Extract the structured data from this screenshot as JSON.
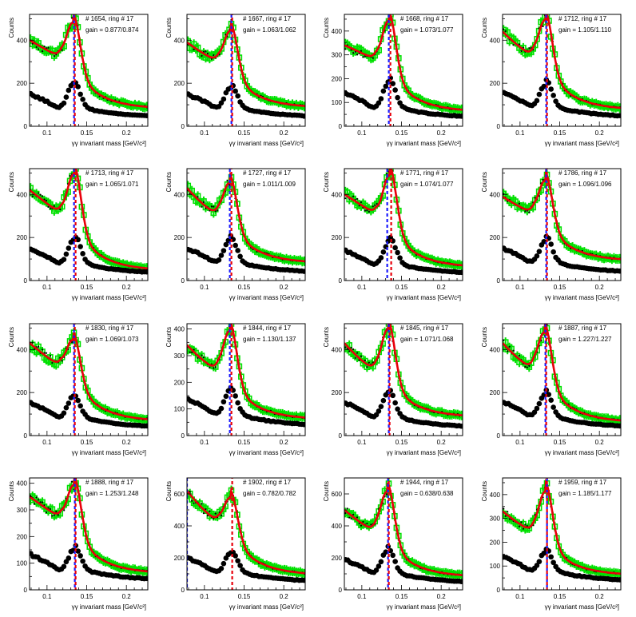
{
  "colors": {
    "background": "#ffffff",
    "data_points": "#000000",
    "fit_line": "#e8000b",
    "mixed_event": "#00e000",
    "peak_marker_a": "#e8000b",
    "peak_marker_b": "#1a1aff"
  },
  "common": {
    "xlabel": "γγ invariant mass [GeV/c²]",
    "ylabel": "Counts",
    "xlim": [
      0.078,
      0.227
    ],
    "xticks": [
      "0.1",
      "0.15",
      "0.2"
    ],
    "xtick_values": [
      0.1,
      0.15,
      0.2
    ]
  },
  "chart_data": [
    {
      "type": "scatter",
      "id_label": "# 1654, ring # 17",
      "gain_label": "gain = 0.877/0.874",
      "ylim": [
        0,
        520
      ],
      "yticks": [
        0,
        200,
        400
      ],
      "peak_marker_a": 0.135,
      "peak_marker_b": 0.134,
      "bg_left": 400,
      "fit_min": 320,
      "fit_peak": 478,
      "fit_right": 80,
      "sig_left": 150,
      "sig_peak": 200,
      "sig_right": 35
    },
    {
      "type": "scatter",
      "id_label": "# 1667, ring # 17",
      "gain_label": "gain = 1.063/1.062",
      "ylim": [
        0,
        520
      ],
      "yticks": [
        0,
        200,
        400
      ],
      "peak_marker_a": 0.135,
      "peak_marker_b": 0.134,
      "bg_left": 390,
      "fit_min": 300,
      "fit_peak": 440,
      "fit_right": 85,
      "sig_left": 150,
      "sig_peak": 185,
      "sig_right": 35
    },
    {
      "type": "scatter",
      "id_label": "# 1668, ring # 17",
      "gain_label": "gain = 1.073/1.077",
      "ylim": [
        0,
        470
      ],
      "yticks": [
        0,
        100,
        200,
        300,
        400
      ],
      "peak_marker_a": 0.136,
      "peak_marker_b": 0.134,
      "bg_left": 340,
      "fit_min": 280,
      "fit_peak": 440,
      "fit_right": 60,
      "sig_left": 140,
      "sig_peak": 190,
      "sig_right": 30
    },
    {
      "type": "scatter",
      "id_label": "# 1712, ring # 17",
      "gain_label": "gain = 1.105/1.110",
      "ylim": [
        0,
        520
      ],
      "yticks": [
        0,
        200,
        400
      ],
      "peak_marker_a": 0.134,
      "peak_marker_b": 0.133,
      "bg_left": 440,
      "fit_min": 320,
      "fit_peak": 490,
      "fit_right": 75,
      "sig_left": 160,
      "sig_peak": 200,
      "sig_right": 35
    },
    {
      "type": "scatter",
      "id_label": "# 1713, ring # 17",
      "gain_label": "gain = 1.065/1.071",
      "ylim": [
        0,
        520
      ],
      "yticks": [
        0,
        200,
        400
      ],
      "peak_marker_a": 0.136,
      "peak_marker_b": 0.134,
      "bg_left": 420,
      "fit_min": 310,
      "fit_peak": 490,
      "fit_right": 45,
      "sig_left": 150,
      "sig_peak": 195,
      "sig_right": 25
    },
    {
      "type": "scatter",
      "id_label": "# 1727, ring # 17",
      "gain_label": "gain = 1.011/1.009",
      "ylim": [
        0,
        520
      ],
      "yticks": [
        0,
        200,
        400
      ],
      "peak_marker_a": 0.134,
      "peak_marker_b": 0.132,
      "bg_left": 430,
      "fit_min": 300,
      "fit_peak": 450,
      "fit_right": 80,
      "sig_left": 150,
      "sig_peak": 195,
      "sig_right": 30
    },
    {
      "type": "scatter",
      "id_label": "# 1771, ring # 17",
      "gain_label": "gain = 1.074/1.077",
      "ylim": [
        0,
        520
      ],
      "yticks": [
        0,
        200,
        400
      ],
      "peak_marker_a": 0.137,
      "peak_marker_b": 0.132,
      "bg_left": 400,
      "fit_min": 310,
      "fit_peak": 485,
      "fit_right": 60,
      "sig_left": 140,
      "sig_peak": 185,
      "sig_right": 25
    },
    {
      "type": "scatter",
      "id_label": "# 1786, ring # 17",
      "gain_label": "gain = 1.096/1.096",
      "ylim": [
        0,
        520
      ],
      "yticks": [
        0,
        200,
        400
      ],
      "peak_marker_a": 0.134,
      "peak_marker_b": 0.133,
      "bg_left": 390,
      "fit_min": 310,
      "fit_peak": 460,
      "fit_right": 90,
      "sig_left": 150,
      "sig_peak": 195,
      "sig_right": 30
    },
    {
      "type": "scatter",
      "id_label": "# 1830, ring # 17",
      "gain_label": "gain = 1.069/1.073",
      "ylim": [
        0,
        520
      ],
      "yticks": [
        0,
        200,
        400
      ],
      "peak_marker_a": 0.135,
      "peak_marker_b": 0.134,
      "bg_left": 430,
      "fit_min": 320,
      "fit_peak": 440,
      "fit_right": 65,
      "sig_left": 155,
      "sig_peak": 185,
      "sig_right": 30
    },
    {
      "type": "scatter",
      "id_label": "# 1844, ring # 17",
      "gain_label": "gain = 1.130/1.137",
      "ylim": [
        0,
        420
      ],
      "yticks": [
        0,
        100,
        200,
        300,
        400
      ],
      "peak_marker_a": 0.134,
      "peak_marker_b": 0.132,
      "bg_left": 340,
      "fit_min": 240,
      "fit_peak": 390,
      "fit_right": 60,
      "sig_left": 140,
      "sig_peak": 175,
      "sig_right": 30
    },
    {
      "type": "scatter",
      "id_label": "# 1845, ring # 17",
      "gain_label": "gain = 1.071/1.068",
      "ylim": [
        0,
        520
      ],
      "yticks": [
        0,
        200,
        400
      ],
      "peak_marker_a": 0.135,
      "peak_marker_b": 0.134,
      "bg_left": 430,
      "fit_min": 300,
      "fit_peak": 490,
      "fit_right": 85,
      "sig_left": 155,
      "sig_peak": 205,
      "sig_right": 30
    },
    {
      "type": "scatter",
      "id_label": "# 1887, ring # 17",
      "gain_label": "gain = 1.227/1.227",
      "ylim": [
        0,
        520
      ],
      "yticks": [
        0,
        200,
        400
      ],
      "peak_marker_a": 0.133,
      "peak_marker_b": 0.132,
      "bg_left": 430,
      "fit_min": 300,
      "fit_peak": 475,
      "fit_right": 60,
      "sig_left": 160,
      "sig_peak": 200,
      "sig_right": 30
    },
    {
      "type": "scatter",
      "id_label": "# 1888, ring # 17",
      "gain_label": "gain = 1.253/1.248",
      "ylim": [
        0,
        420
      ],
      "yticks": [
        0,
        100,
        200,
        300,
        400
      ],
      "peak_marker_a": 0.136,
      "peak_marker_b": 0.135,
      "bg_left": 350,
      "fit_min": 270,
      "fit_peak": 390,
      "fit_right": 60,
      "sig_left": 135,
      "sig_peak": 155,
      "sig_right": 30
    },
    {
      "type": "scatter",
      "id_label": "# 1902, ring # 17",
      "gain_label": "gain = 0.782/0.782",
      "ylim": [
        0,
        700
      ],
      "yticks": [
        0,
        200,
        400,
        600
      ],
      "peak_marker_a": 0.135,
      "peak_marker_b": 0.078,
      "bg_left": 620,
      "fit_min": 420,
      "fit_peak": 570,
      "fit_right": 90,
      "sig_left": 200,
      "sig_peak": 235,
      "sig_right": 40
    },
    {
      "type": "scatter",
      "id_label": "# 1944, ring # 17",
      "gain_label": "gain = 0.638/0.638",
      "ylim": [
        0,
        700
      ],
      "yticks": [
        0,
        200,
        400,
        600
      ],
      "peak_marker_a": 0.134,
      "peak_marker_b": 0.133,
      "bg_left": 500,
      "fit_min": 360,
      "fit_peak": 610,
      "fit_right": 80,
      "sig_left": 190,
      "sig_peak": 250,
      "sig_right": 35
    },
    {
      "type": "scatter",
      "id_label": "# 1959, ring # 17",
      "gain_label": "gain = 1.185/1.177",
      "ylim": [
        0,
        470
      ],
      "yticks": [
        0,
        100,
        200,
        300,
        400
      ],
      "peak_marker_a": 0.134,
      "peak_marker_b": 0.134,
      "bg_left": 330,
      "fit_min": 240,
      "fit_peak": 410,
      "fit_right": 60,
      "sig_left": 140,
      "sig_peak": 165,
      "sig_right": 30
    }
  ]
}
